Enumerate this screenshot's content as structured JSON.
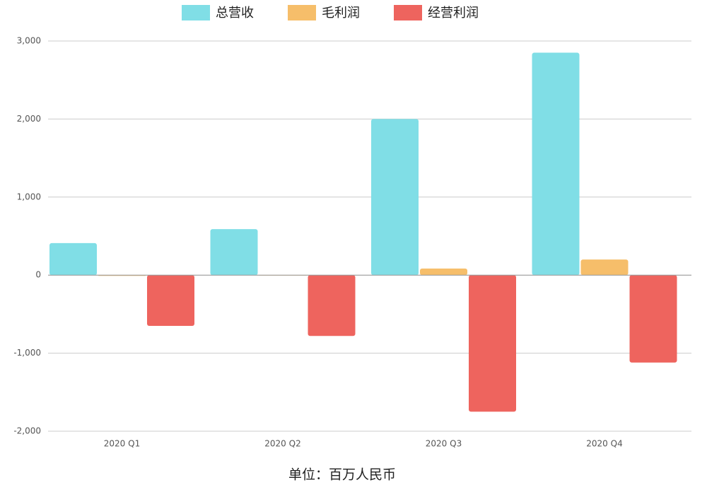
{
  "chart_data": {
    "type": "bar",
    "categories": [
      "2020 Q1",
      "2020 Q2",
      "2020 Q3",
      "2020 Q4"
    ],
    "series": [
      {
        "name": "总营收",
        "color": "#80dee6",
        "values": [
          410,
          590,
          2000,
          2850
        ]
      },
      {
        "name": "毛利润",
        "color": "#f6be6a",
        "values": [
          -10,
          -5,
          85,
          200
        ]
      },
      {
        "name": "经营利润",
        "color": "#ee645e",
        "values": [
          -650,
          -780,
          -1750,
          -1120
        ]
      }
    ],
    "ylim": [
      -2000,
      3000
    ],
    "yticks": [
      {
        "value": -2000,
        "label": "-2,000"
      },
      {
        "value": -1000,
        "label": "-1,000"
      },
      0,
      {
        "value": 1000,
        "label": "1,000"
      },
      {
        "value": 2000,
        "label": "2,000"
      },
      {
        "value": 3000,
        "label": "3,000"
      }
    ],
    "grid": true,
    "legend": "top",
    "footnote": "单位：百万人民币"
  }
}
